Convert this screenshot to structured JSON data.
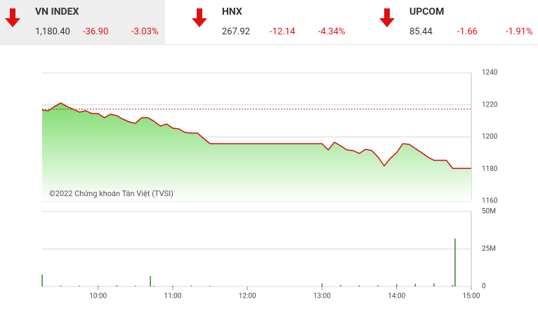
{
  "indices": [
    {
      "name": "VN INDEX",
      "price": "1,180.40",
      "change": "-36.90",
      "percent": "-3.03%"
    },
    {
      "name": "HNX",
      "price": "267.92",
      "change": "-12.14",
      "percent": "-4.34%"
    },
    {
      "name": "UPCOM",
      "price": "85.44",
      "change": "-1.66",
      "percent": "-1.91%"
    }
  ],
  "chart_data": [
    {
      "type": "area",
      "annotation": "©2022 Chứng khoán Tân Việt (TVSI)",
      "x": [
        "09:15",
        "09:20",
        "09:25",
        "09:30",
        "09:35",
        "09:40",
        "09:45",
        "09:50",
        "09:55",
        "10:00",
        "10:05",
        "10:10",
        "10:15",
        "10:20",
        "10:25",
        "10:30",
        "10:35",
        "10:40",
        "10:45",
        "10:50",
        "10:55",
        "11:00",
        "11:05",
        "11:10",
        "11:15",
        "11:20",
        "11:25",
        "11:30",
        "13:00",
        "13:05",
        "13:10",
        "13:15",
        "13:20",
        "13:25",
        "13:30",
        "13:35",
        "13:40",
        "13:45",
        "13:50",
        "13:55",
        "14:00",
        "14:05",
        "14:10",
        "14:15",
        "14:20",
        "14:25",
        "14:30",
        "14:40",
        "14:45",
        "15:00"
      ],
      "series": [
        {
          "color": "#cc1111",
          "values": [
            1216.8,
            1216.4,
            1219,
            1221.2,
            1219,
            1217.3,
            1215.5,
            1216.4,
            1214.6,
            1214.6,
            1212,
            1214.2,
            1213.3,
            1211.1,
            1209.4,
            1208.5,
            1212,
            1212,
            1209.8,
            1206.8,
            1208.1,
            1205.5,
            1205,
            1202.8,
            1202.4,
            1202.4,
            1198.9,
            1195.8,
            1195.8,
            1191.9,
            1196.7,
            1194.5,
            1191.9,
            1191.5,
            1189.7,
            1192.3,
            1191.5,
            1187.5,
            1181.9,
            1186.7,
            1190.2,
            1195.8,
            1195.4,
            1192.8,
            1190.2,
            1187.5,
            1185.4,
            1185.4,
            1180.4,
            1180.4
          ]
        }
      ],
      "reference": 1217.3,
      "xlim": [
        "09:15",
        "15:00"
      ],
      "ylim": [
        1160,
        1240
      ],
      "yticks": [
        1160,
        1180,
        1200,
        1220,
        1240
      ],
      "grid": true
    },
    {
      "type": "bar",
      "color": "#2e8b2e",
      "x": [
        "09:15",
        "09:30",
        "09:45",
        "10:00",
        "10:15",
        "10:30",
        "10:42",
        "10:45",
        "11:00",
        "11:15",
        "11:30",
        "13:00",
        "13:15",
        "13:30",
        "13:45",
        "14:00",
        "14:15",
        "14:30",
        "14:45",
        "14:47"
      ],
      "values": [
        8,
        0.6,
        0.5,
        0.5,
        0.8,
        0.5,
        7,
        0.5,
        0.5,
        0.6,
        0.5,
        2,
        1,
        0.8,
        0.8,
        1.5,
        1.8,
        2,
        1,
        32
      ],
      "xlim": [
        "09:15",
        "15:00"
      ],
      "xticks": [
        "10:00",
        "11:00",
        "12:00",
        "13:00",
        "14:00",
        "15:00"
      ],
      "ylim": [
        0,
        50
      ],
      "yticks": [
        0,
        {
          "value": 25,
          "label": "25M"
        },
        {
          "value": 50,
          "label": "50M"
        }
      ],
      "grid": true
    }
  ]
}
